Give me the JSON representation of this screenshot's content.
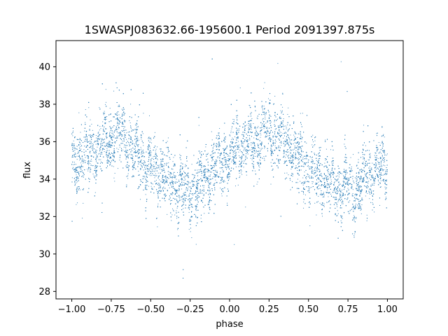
{
  "chart_data": {
    "type": "scatter",
    "title": "1SWASPJ083632.66-195600.1 Period 2091397.875s",
    "xlabel": "phase",
    "ylabel": "flux",
    "xlim": [
      -1.1,
      1.1
    ],
    "ylim": [
      27.6,
      41.4
    ],
    "x_ticks": [
      -1.0,
      -0.75,
      -0.5,
      -0.25,
      0.0,
      0.25,
      0.5,
      0.75,
      1.0
    ],
    "x_tick_labels": [
      "−1.00",
      "−0.75",
      "−0.50",
      "−0.25",
      "0.00",
      "0.25",
      "0.50",
      "0.75",
      "1.00"
    ],
    "y_ticks": [
      28,
      30,
      32,
      34,
      36,
      38,
      40
    ],
    "y_tick_labels": [
      "28",
      "30",
      "32",
      "34",
      "36",
      "38",
      "40"
    ],
    "marker_color": "#1f77b4",
    "grid": false,
    "legend": "none",
    "series": [
      {
        "x_range": [
          -1.0,
          1.0
        ],
        "mean_profile": {
          "phase": [
            -1.0,
            -0.95,
            -0.9,
            -0.85,
            -0.8,
            -0.75,
            -0.7,
            -0.65,
            -0.6,
            -0.55,
            -0.5,
            -0.45,
            -0.4,
            -0.35,
            -0.3,
            -0.25,
            -0.2,
            -0.15,
            -0.1,
            -0.05,
            0.0,
            0.05,
            0.1,
            0.15,
            0.2,
            0.25,
            0.3,
            0.35,
            0.4,
            0.45,
            0.5,
            0.55,
            0.6,
            0.65,
            0.7,
            0.75,
            0.8,
            0.85,
            0.9,
            0.95,
            1.0
          ],
          "flux": [
            34.8,
            35.0,
            35.2,
            35.5,
            35.9,
            36.3,
            36.4,
            36.1,
            35.6,
            35.0,
            34.6,
            34.3,
            34.0,
            33.8,
            33.5,
            33.4,
            33.6,
            34.0,
            34.5,
            35.0,
            35.3,
            35.6,
            35.8,
            36.0,
            36.3,
            36.5,
            36.4,
            36.0,
            35.4,
            34.9,
            34.6,
            34.3,
            34.0,
            33.7,
            33.5,
            33.4,
            33.5,
            33.8,
            34.2,
            34.5,
            34.8
          ]
        },
        "scatter_sd": 0.95,
        "n_points": 9000
      }
    ]
  }
}
